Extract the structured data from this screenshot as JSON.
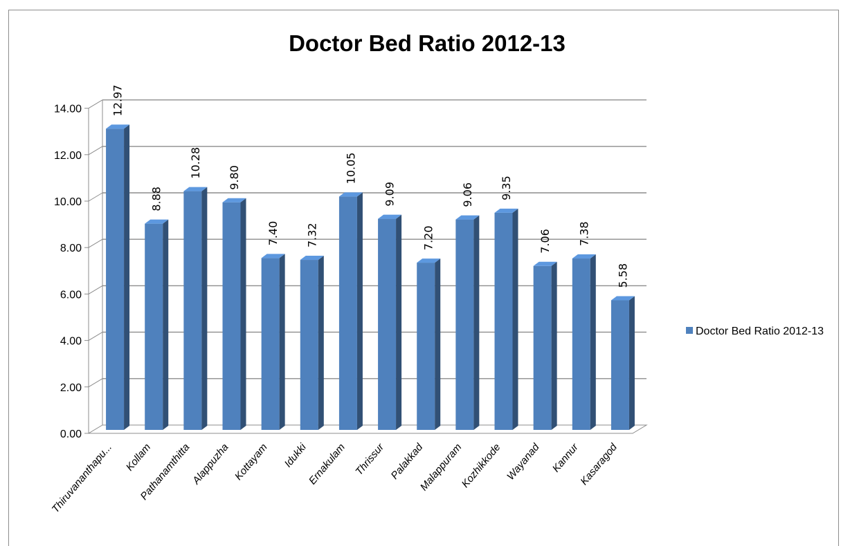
{
  "chart_data": {
    "type": "bar",
    "title": "Doctor Bed Ratio 2012-13",
    "categories": [
      "Thiruvananthapu...",
      "Kollam",
      "Pathanamthitta",
      "Alappuzha",
      "Kottayam",
      "Idukki",
      "Ernakulam",
      "Thrissur",
      "Palakkad",
      "Malappuram",
      "Kozhikkode",
      "Wayanad",
      "Kannur",
      "Kasaragod"
    ],
    "series": [
      {
        "name": "Doctor Bed Ratio 2012-13",
        "values": [
          12.97,
          8.88,
          10.28,
          9.8,
          7.4,
          7.32,
          10.05,
          9.09,
          7.2,
          9.06,
          9.35,
          7.06,
          7.38,
          5.58
        ],
        "labels": [
          "12.97",
          "8.88",
          "10.28",
          "9.80",
          "7.40",
          "7.32",
          "10.05",
          "9.09",
          "7.20",
          "9.06",
          "9.35",
          "7.06",
          "7.38",
          "5.58"
        ],
        "color": "#4f81bd"
      }
    ],
    "y_ticks": [
      "0.00",
      "2.00",
      "4.00",
      "6.00",
      "8.00",
      "10.00",
      "12.00",
      "14.00"
    ],
    "ylim": [
      0,
      14
    ],
    "grid": true,
    "legend": "right",
    "style": "3d-column"
  }
}
